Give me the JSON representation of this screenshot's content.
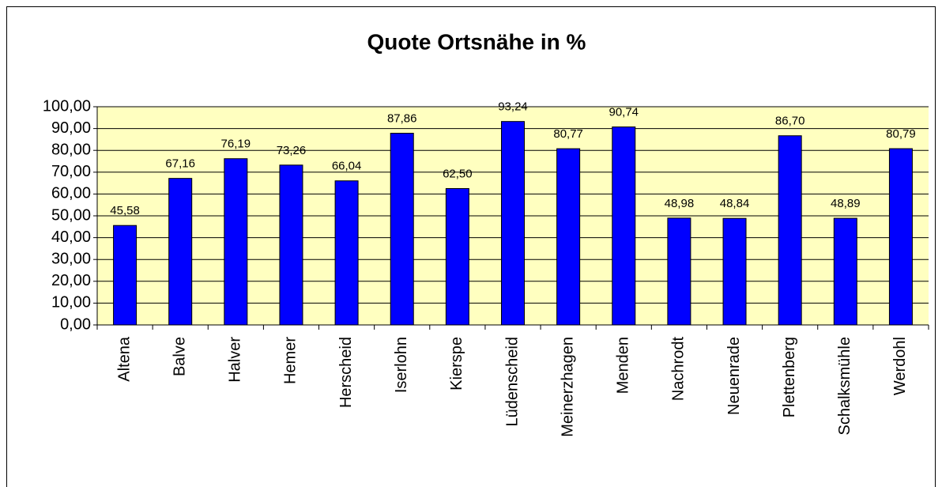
{
  "chart_data": {
    "type": "bar",
    "title": "Quote Ortsnähe in %",
    "categories": [
      "Altena",
      "Balve",
      "Halver",
      "Hemer",
      "Herscheid",
      "Iserlohn",
      "Kierspe",
      "Lüdenscheid",
      "Meinerzhagen",
      "Menden",
      "Nachrodt",
      "Neuenrade",
      "Plettenberg",
      "Schalksmühle",
      "Werdohl"
    ],
    "values": [
      45.58,
      67.16,
      76.19,
      73.26,
      66.04,
      87.86,
      62.5,
      93.24,
      80.77,
      90.74,
      48.98,
      48.84,
      86.7,
      48.89,
      80.79
    ],
    "value_labels": [
      "45,58",
      "67,16",
      "76,19",
      "73,26",
      "66,04",
      "87,86",
      "62,50",
      "93,24",
      "80,77",
      "90,74",
      "48,98",
      "48,84",
      "86,70",
      "48,89",
      "80,79"
    ],
    "color": "#0000ff",
    "ylim": [
      0,
      100
    ],
    "yticks": [
      {
        "value": 0,
        "label": "0,00"
      },
      {
        "value": 10,
        "label": "10,00"
      },
      {
        "value": 20,
        "label": "20,00"
      },
      {
        "value": 30,
        "label": "30,00"
      },
      {
        "value": 40,
        "label": "40,00"
      },
      {
        "value": 50,
        "label": "50,00"
      },
      {
        "value": 60,
        "label": "60,00"
      },
      {
        "value": 70,
        "label": "70,00"
      },
      {
        "value": 80,
        "label": "80,00"
      },
      {
        "value": 90,
        "label": "90,00"
      },
      {
        "value": 100,
        "label": "100,00"
      }
    ],
    "grid": true
  }
}
